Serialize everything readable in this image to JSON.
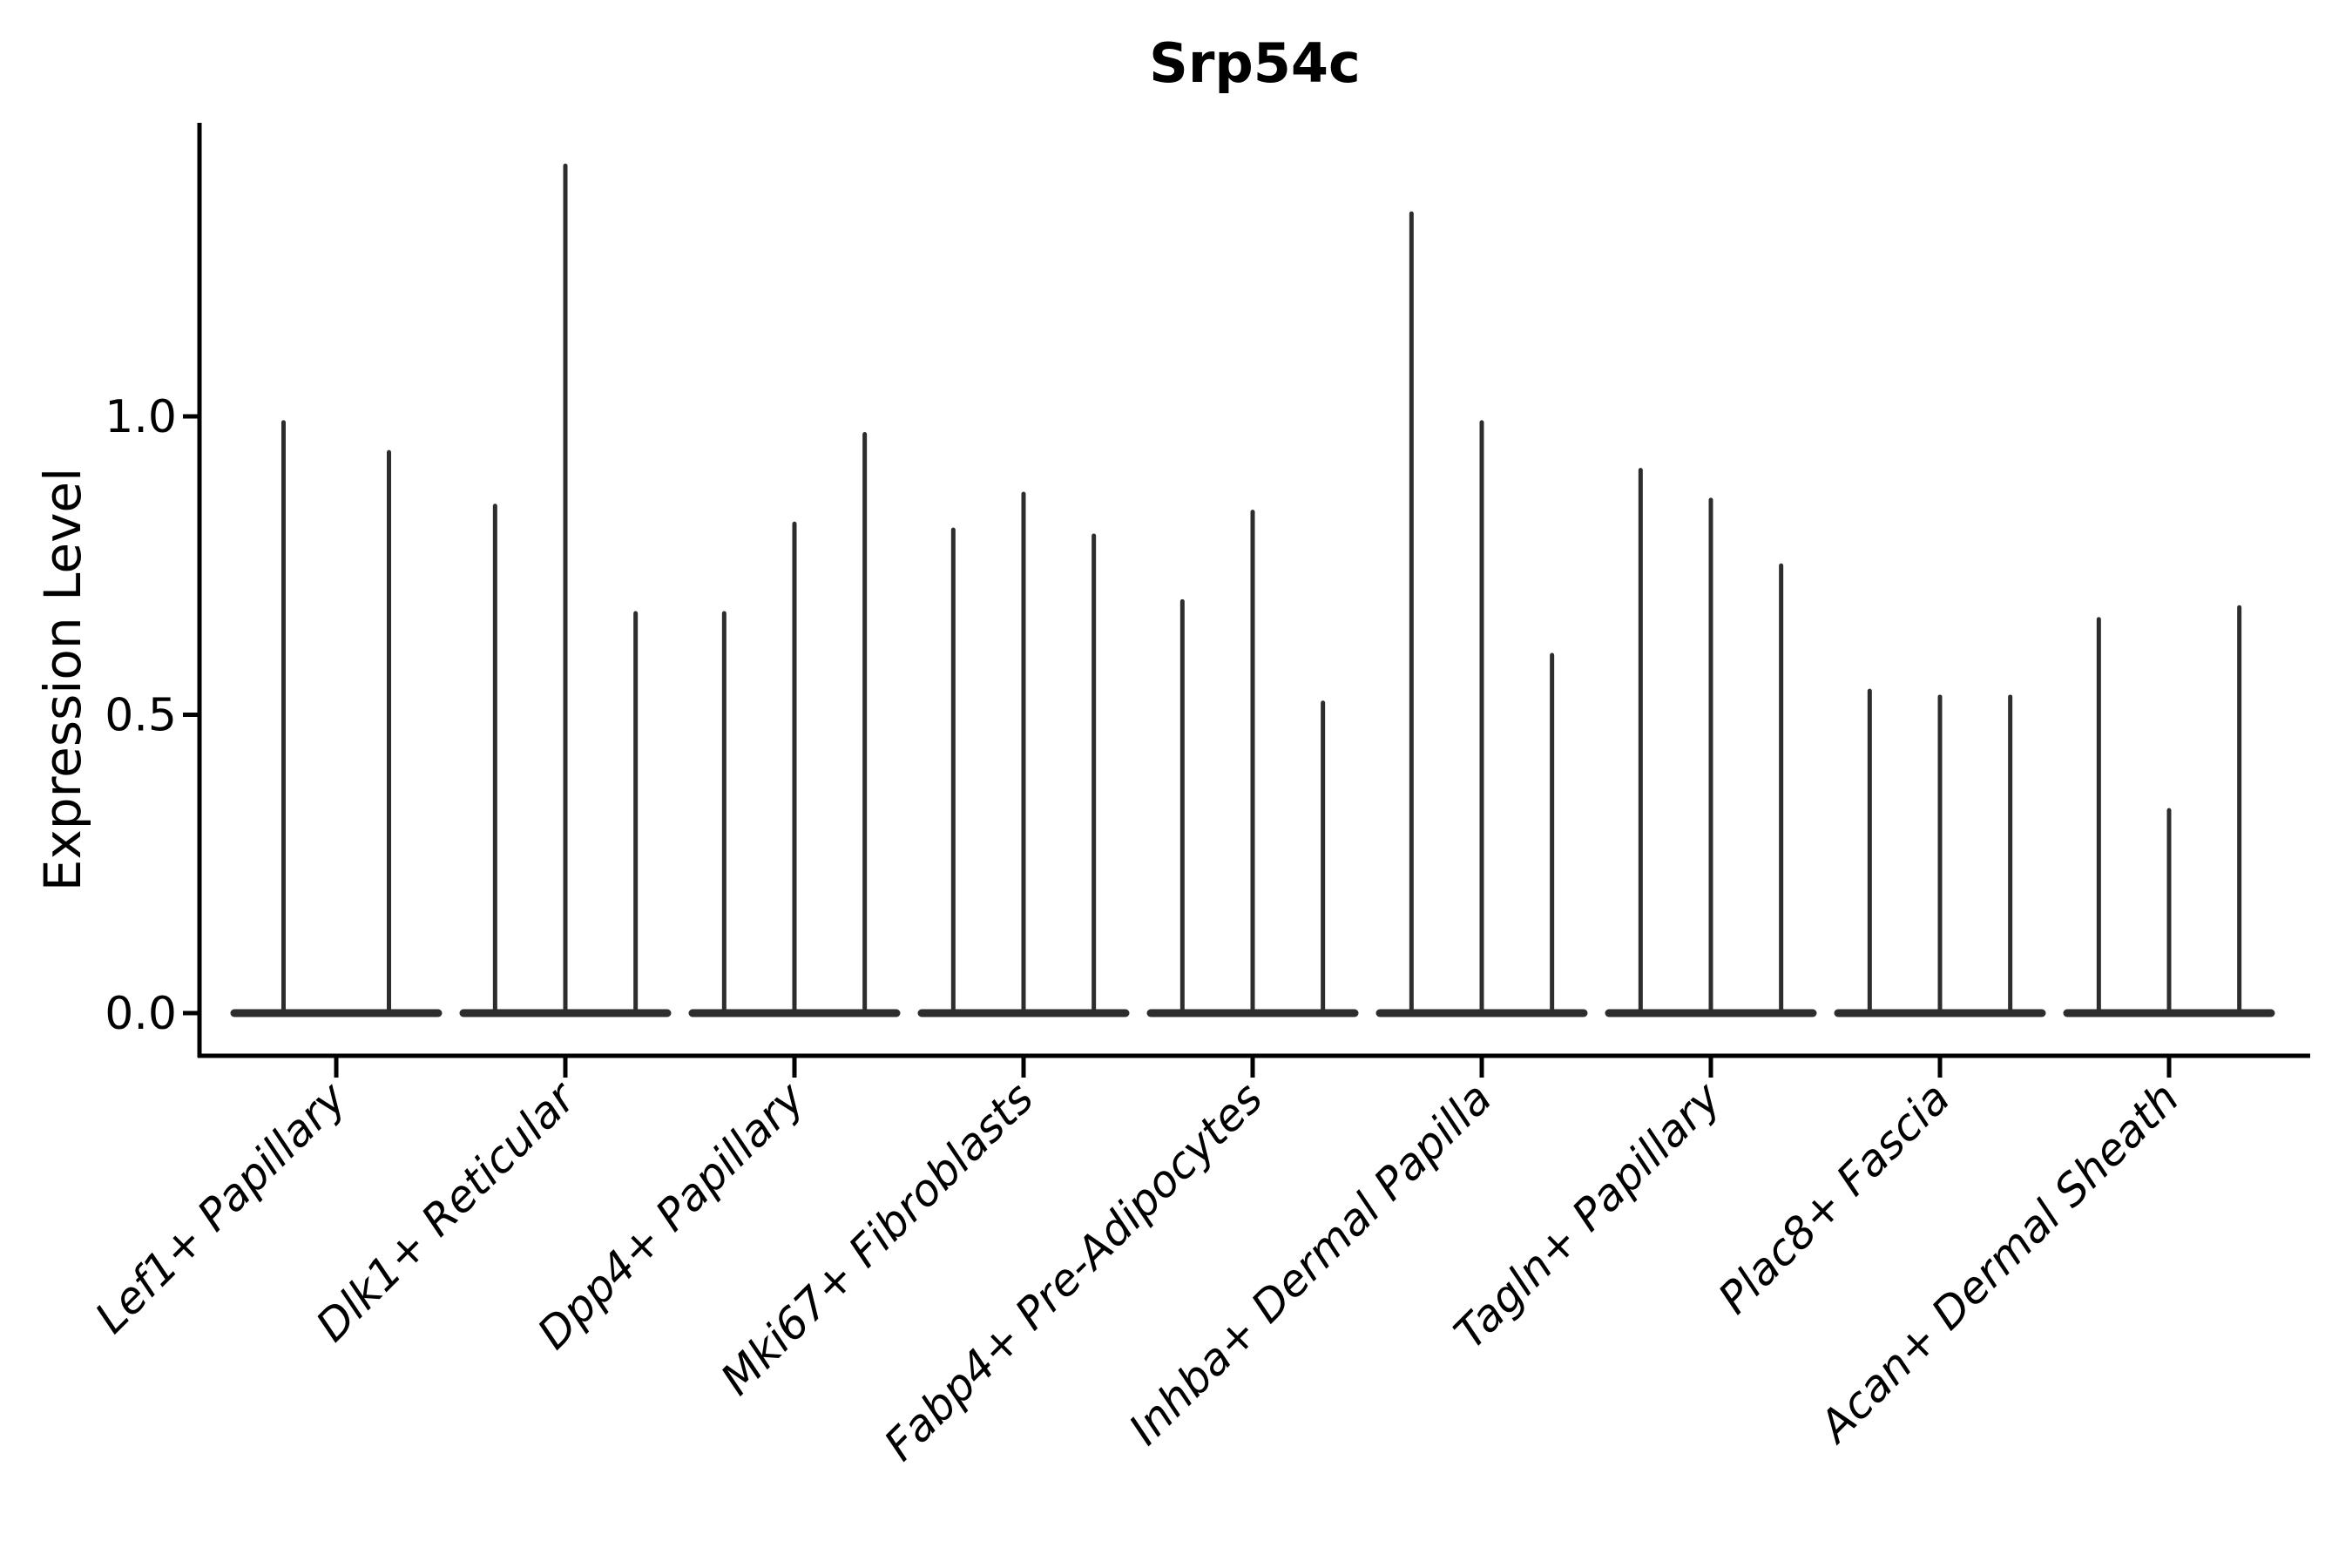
{
  "chart_data": {
    "type": "violin",
    "title": "Srp54c",
    "ylabel": "Expression Level",
    "xlabel": "",
    "grid": false,
    "legend": null,
    "ylim": [
      -0.07,
      1.49
    ],
    "yticks": [
      {
        "label": "0.0",
        "value": 0.0
      },
      {
        "label": "0.5",
        "value": 0.5
      },
      {
        "label": "1.0",
        "value": 1.0
      }
    ],
    "categories": [
      "Lef1+ Papillary",
      "Dlk1+ Reticular",
      "Dpp4+ Papillary",
      "Mki67+ Fibroblasts",
      "Fabp4+ Pre-Adipocytes",
      "Inhba+ Dermal Papilla",
      "Tagln+ Papillary",
      "Plac8+ Fascia",
      "Acan+ Dermal Sheath"
    ],
    "series": [
      {
        "name": "Lef1+ Papillary",
        "values": [
          0.99,
          0.94
        ]
      },
      {
        "name": "Dlk1+ Reticular",
        "values": [
          0.85,
          1.42,
          0.67
        ]
      },
      {
        "name": "Dpp4+ Papillary",
        "values": [
          0.67,
          0.82,
          0.97
        ]
      },
      {
        "name": "Mki67+ Fibroblasts",
        "values": [
          0.81,
          0.87,
          0.8
        ]
      },
      {
        "name": "Fabp4+ Pre-Adipocytes",
        "values": [
          0.69,
          0.84,
          0.52
        ]
      },
      {
        "name": "Inhba+ Dermal Papilla",
        "values": [
          1.34,
          0.99,
          0.6
        ]
      },
      {
        "name": "Tagln+ Papillary",
        "values": [
          0.91,
          0.86,
          0.75
        ]
      },
      {
        "name": "Plac8+ Fascia",
        "values": [
          0.54,
          0.53,
          0.53
        ]
      },
      {
        "name": "Acan+ Dermal Sheath",
        "values": [
          0.66,
          0.34,
          0.68
        ]
      }
    ],
    "description": "Violin plot of expression level per fibroblast cluster; each category contains narrow zero-inflated violins (thin spikes rising from a flat baseline at 0)."
  },
  "style": {
    "violin_color": "#2d2d2d",
    "axis_color": "#000000",
    "text_color": "#000000",
    "background": "#ffffff"
  }
}
